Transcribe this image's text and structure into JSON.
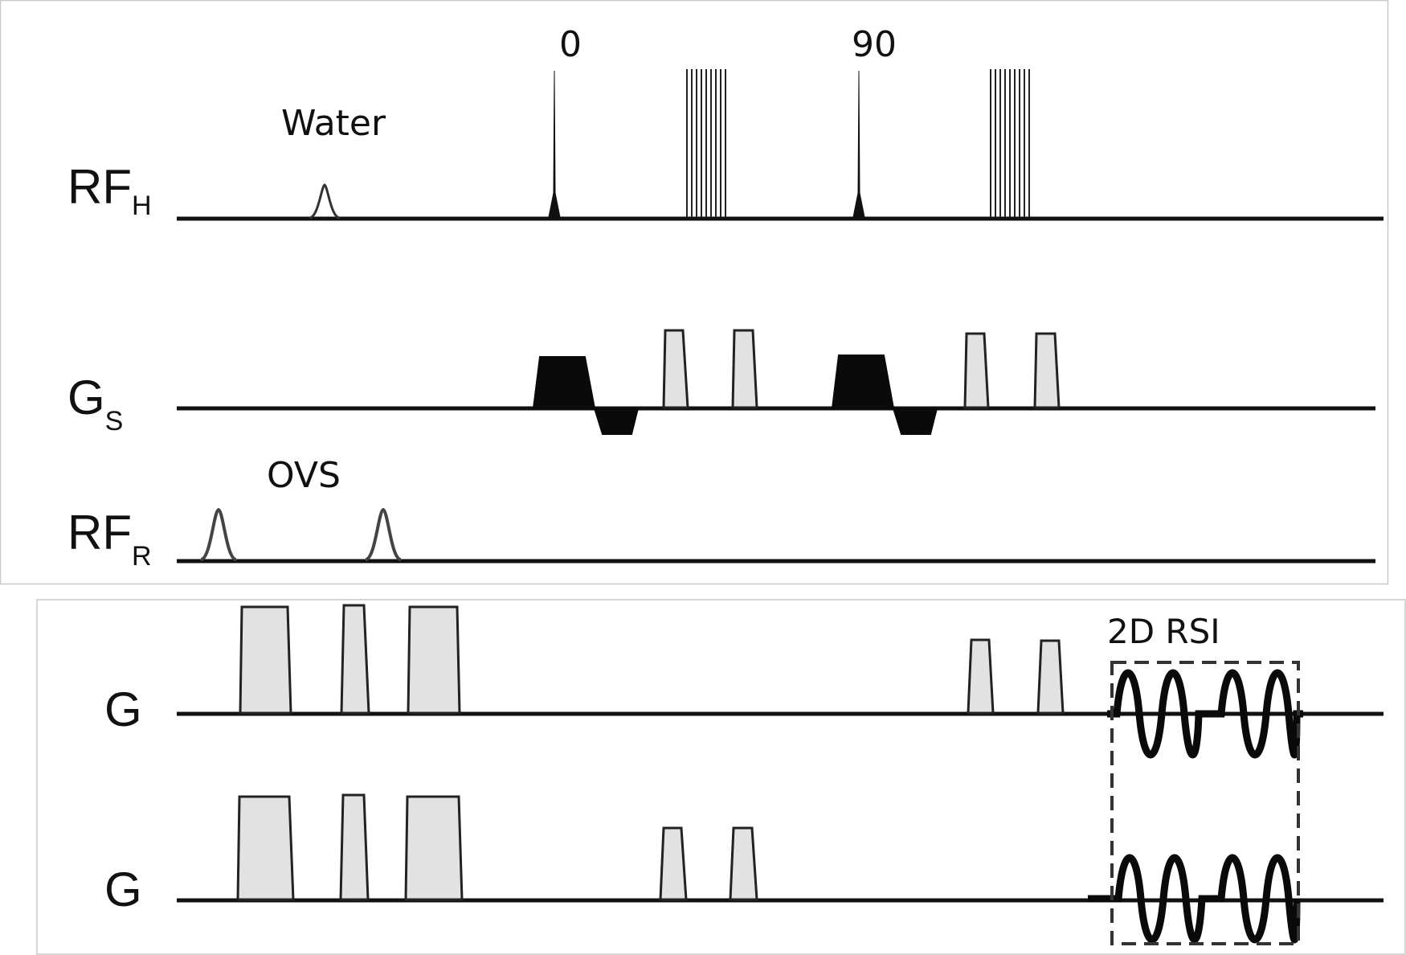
{
  "channels": {
    "rf_h": {
      "label": "RF",
      "subscript": "H"
    },
    "g_s": {
      "label": "G",
      "subscript": "S"
    },
    "rf_r": {
      "label": "RF",
      "subscript": "R"
    },
    "g_1": {
      "label": "G"
    },
    "g_2": {
      "label": "G"
    }
  },
  "annotations": {
    "water": "Water",
    "pulse_0": "0",
    "pulse_90": "90",
    "ovs": "OVS",
    "rsi": "2D RSI"
  },
  "colors": {
    "line": "#111111",
    "gradient_fill": "#e2e2e2",
    "solid_gradient": "#0a0a0a",
    "panel_border": "#c8c8c8",
    "box_dash": "#333333"
  }
}
